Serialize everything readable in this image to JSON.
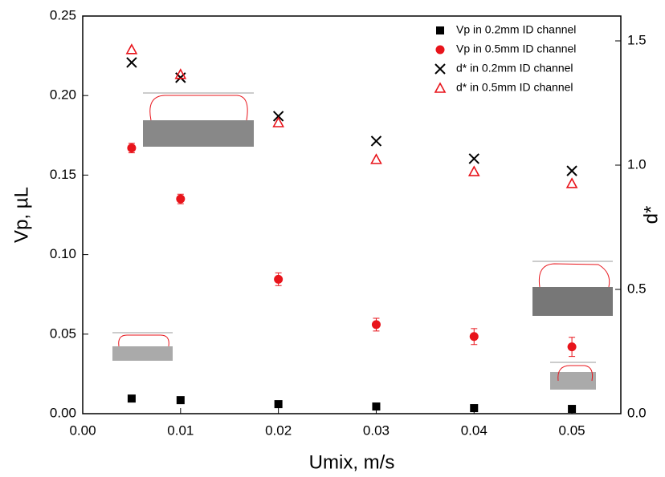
{
  "chart_data": {
    "type": "scatter",
    "x_label": "Umix, m/s",
    "y_label": "Vp, µL",
    "y2_label": "d*",
    "xlim": [
      0,
      0.055
    ],
    "ylim": [
      0,
      0.25
    ],
    "y2lim": [
      0,
      1.6
    ],
    "xticks": [
      {
        "value": 0,
        "label": "0.00"
      },
      {
        "value": 0.01,
        "label": "0.01"
      },
      {
        "value": 0.02,
        "label": "0.02"
      },
      {
        "value": 0.03,
        "label": "0.03"
      },
      {
        "value": 0.04,
        "label": "0.04"
      },
      {
        "value": 0.05,
        "label": "0.05"
      }
    ],
    "yticks": [
      {
        "value": 0,
        "label": "0.00"
      },
      {
        "value": 0.05,
        "label": "0.05"
      },
      {
        "value": 0.1,
        "label": "0.10"
      },
      {
        "value": 0.15,
        "label": "0.15"
      },
      {
        "value": 0.2,
        "label": "0.20"
      },
      {
        "value": 0.25,
        "label": "0.25"
      }
    ],
    "y2ticks": [
      {
        "value": 0,
        "label": "0.0"
      },
      {
        "value": 0.5,
        "label": "0.5"
      },
      {
        "value": 1,
        "label": "1.0"
      },
      {
        "value": 1.5,
        "label": "1.5"
      }
    ],
    "legend": "top-right",
    "series": [
      {
        "name": "Vp in 0.2mm ID channel",
        "color": "#000000",
        "marker": "square",
        "x": [
          0.005,
          0.01,
          0.02,
          0.03,
          0.04,
          0.05
        ],
        "values": [
          0.0095,
          0.0085,
          0.006,
          0.0045,
          0.0035,
          0.003
        ]
      },
      {
        "name": "Vp in 0.5mm ID channel",
        "color": "#e8141b",
        "marker": "circle",
        "x": [
          0.005,
          0.01,
          0.02,
          0.03,
          0.04,
          0.05
        ],
        "values": [
          0.167,
          0.135,
          0.0845,
          0.056,
          0.0485,
          0.042
        ],
        "errors": [
          0.003,
          0.003,
          0.004,
          0.004,
          0.005,
          0.006
        ]
      },
      {
        "name": "d* in 0.2mm ID channel",
        "color": "#000000",
        "marker": "x",
        "axis": "y2",
        "x": [
          0.005,
          0.01,
          0.02,
          0.03,
          0.04,
          0.05
        ],
        "values": [
          1.413,
          1.352,
          1.197,
          1.097,
          1.026,
          0.977
        ]
      },
      {
        "name": "d* in 0.5mm ID channel",
        "color": "#e8141b",
        "marker": "triangle",
        "axis": "y2",
        "x": [
          0.005,
          0.01,
          0.02,
          0.03,
          0.04,
          0.05
        ],
        "values": [
          1.465,
          1.365,
          1.171,
          1.023,
          0.974,
          0.926
        ]
      }
    ]
  }
}
